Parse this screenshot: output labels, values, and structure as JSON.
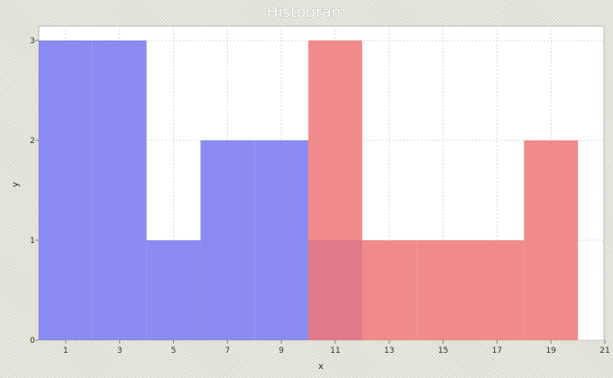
{
  "chart_data": {
    "type": "bar",
    "title": "Histogram",
    "xlabel": "x",
    "ylabel": "y",
    "xlim": [
      0,
      21
    ],
    "ylim": [
      0,
      3
    ],
    "xticks": [
      1,
      3,
      5,
      7,
      9,
      11,
      13,
      15,
      17,
      19,
      21
    ],
    "yticks": [
      0,
      1,
      2,
      3
    ],
    "grid": true,
    "bin_width": 2,
    "series": [
      {
        "color": "#7777ee",
        "bins": [
          {
            "start": 0,
            "end": 2,
            "value": 3
          },
          {
            "start": 2,
            "end": 4,
            "value": 3
          },
          {
            "start": 4,
            "end": 6,
            "value": 1
          },
          {
            "start": 6,
            "end": 8,
            "value": 2
          },
          {
            "start": 8,
            "end": 10,
            "value": 2
          },
          {
            "start": 10,
            "end": 12,
            "value": 1
          }
        ]
      },
      {
        "color": "#ee7777",
        "bins": [
          {
            "start": 10,
            "end": 12,
            "value": 3
          },
          {
            "start": 12,
            "end": 14,
            "value": 1
          },
          {
            "start": 14,
            "end": 16,
            "value": 1
          },
          {
            "start": 16,
            "end": 18,
            "value": 1
          },
          {
            "start": 18,
            "end": 20,
            "value": 2
          }
        ]
      }
    ]
  }
}
